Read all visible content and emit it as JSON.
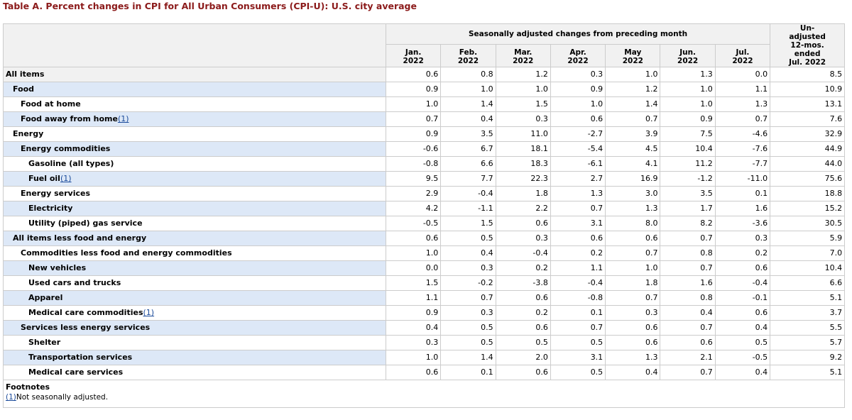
{
  "title": "Table A. Percent changes in CPI for All Urban Consumers (CPI-U): U.S. city average",
  "table": {
    "group_header": "Seasonally adjusted changes from preceding month",
    "columns": [
      [
        "Jan.",
        "2022"
      ],
      [
        "Feb.",
        "2022"
      ],
      [
        "Mar.",
        "2022"
      ],
      [
        "Apr.",
        "2022"
      ],
      [
        "May",
        "2022"
      ],
      [
        "Jun.",
        "2022"
      ],
      [
        "Jul.",
        "2022"
      ],
      [
        "Un-",
        "adjusted",
        "12-mos.",
        "ended",
        "Jul. 2022"
      ]
    ],
    "rows": [
      {
        "label": "All items",
        "values": [
          "0.6",
          "0.8",
          "1.2",
          "0.3",
          "1.0",
          "1.3",
          "0.0",
          "8.5"
        ]
      },
      {
        "label": "Food",
        "values": [
          "0.9",
          "1.0",
          "1.0",
          "0.9",
          "1.2",
          "1.0",
          "1.1",
          "10.9"
        ]
      },
      {
        "label": "Food at home",
        "values": [
          "1.0",
          "1.4",
          "1.5",
          "1.0",
          "1.4",
          "1.0",
          "1.3",
          "13.1"
        ]
      },
      {
        "label": "Food away from home",
        "note": "(1)",
        "values": [
          "0.7",
          "0.4",
          "0.3",
          "0.6",
          "0.7",
          "0.9",
          "0.7",
          "7.6"
        ]
      },
      {
        "label": "Energy",
        "values": [
          "0.9",
          "3.5",
          "11.0",
          "-2.7",
          "3.9",
          "7.5",
          "-4.6",
          "32.9"
        ]
      },
      {
        "label": "Energy commodities",
        "values": [
          "-0.6",
          "6.7",
          "18.1",
          "-5.4",
          "4.5",
          "10.4",
          "-7.6",
          "44.9"
        ]
      },
      {
        "label": "Gasoline (all types)",
        "values": [
          "-0.8",
          "6.6",
          "18.3",
          "-6.1",
          "4.1",
          "11.2",
          "-7.7",
          "44.0"
        ]
      },
      {
        "label": "Fuel oil",
        "note": "(1)",
        "values": [
          "9.5",
          "7.7",
          "22.3",
          "2.7",
          "16.9",
          "-1.2",
          "-11.0",
          "75.6"
        ]
      },
      {
        "label": "Energy services",
        "values": [
          "2.9",
          "-0.4",
          "1.8",
          "1.3",
          "3.0",
          "3.5",
          "0.1",
          "18.8"
        ]
      },
      {
        "label": "Electricity",
        "values": [
          "4.2",
          "-1.1",
          "2.2",
          "0.7",
          "1.3",
          "1.7",
          "1.6",
          "15.2"
        ]
      },
      {
        "label": "Utility (piped) gas service",
        "values": [
          "-0.5",
          "1.5",
          "0.6",
          "3.1",
          "8.0",
          "8.2",
          "-3.6",
          "30.5"
        ]
      },
      {
        "label": "All items less food and energy",
        "values": [
          "0.6",
          "0.5",
          "0.3",
          "0.6",
          "0.6",
          "0.7",
          "0.3",
          "5.9"
        ]
      },
      {
        "label": "Commodities less food and energy commodities",
        "values": [
          "1.0",
          "0.4",
          "-0.4",
          "0.2",
          "0.7",
          "0.8",
          "0.2",
          "7.0"
        ]
      },
      {
        "label": "New vehicles",
        "values": [
          "0.0",
          "0.3",
          "0.2",
          "1.1",
          "1.0",
          "0.7",
          "0.6",
          "10.4"
        ]
      },
      {
        "label": "Used cars and trucks",
        "values": [
          "1.5",
          "-0.2",
          "-3.8",
          "-0.4",
          "1.8",
          "1.6",
          "-0.4",
          "6.6"
        ]
      },
      {
        "label": "Apparel",
        "values": [
          "1.1",
          "0.7",
          "0.6",
          "-0.8",
          "0.7",
          "0.8",
          "-0.1",
          "5.1"
        ]
      },
      {
        "label": "Medical care commodities",
        "note": "(1)",
        "values": [
          "0.9",
          "0.3",
          "0.2",
          "0.1",
          "0.3",
          "0.4",
          "0.6",
          "3.7"
        ]
      },
      {
        "label": "Services less energy services",
        "values": [
          "0.4",
          "0.5",
          "0.6",
          "0.7",
          "0.6",
          "0.7",
          "0.4",
          "5.5"
        ]
      },
      {
        "label": "Shelter",
        "values": [
          "0.3",
          "0.5",
          "0.5",
          "0.5",
          "0.6",
          "0.6",
          "0.5",
          "5.7"
        ]
      },
      {
        "label": "Transportation services",
        "values": [
          "1.0",
          "1.4",
          "2.0",
          "3.1",
          "1.3",
          "2.1",
          "-0.5",
          "9.2"
        ]
      },
      {
        "label": "Medical care services",
        "values": [
          "0.6",
          "0.1",
          "0.6",
          "0.5",
          "0.4",
          "0.7",
          "0.4",
          "5.1"
        ]
      }
    ]
  },
  "footnotes": {
    "title": "Footnotes",
    "items": [
      {
        "marker": "(1)",
        "text": "Not seasonally adjusted."
      }
    ]
  }
}
